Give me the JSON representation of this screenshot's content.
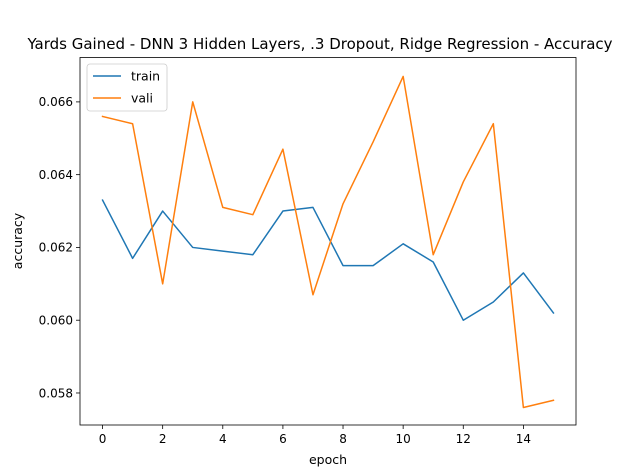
{
  "chart_data": {
    "type": "line",
    "title": "Yards Gained - DNN 3 Hidden Layers, .3 Dropout, Ridge Regression - Accuracy",
    "xlabel": "epoch",
    "ylabel": "accuracy",
    "xlim": [
      -0.75,
      15.75
    ],
    "ylim": [
      0.05712,
      0.06722
    ],
    "xticks": [
      0,
      2,
      4,
      6,
      8,
      10,
      12,
      14
    ],
    "xtick_labels": [
      "0",
      "2",
      "4",
      "6",
      "8",
      "10",
      "12",
      "14"
    ],
    "yticks": [
      0.058,
      0.06,
      0.062,
      0.064,
      0.066
    ],
    "ytick_labels": [
      "0.058",
      "0.060",
      "0.062",
      "0.064",
      "0.066"
    ],
    "x": [
      0,
      1,
      2,
      3,
      4,
      5,
      6,
      7,
      8,
      9,
      10,
      11,
      12,
      13,
      14,
      15
    ],
    "series": [
      {
        "name": "train",
        "color": "#1f77b4",
        "values": [
          0.0633,
          0.0617,
          0.063,
          0.062,
          0.0619,
          0.0618,
          0.063,
          0.0631,
          0.0615,
          0.0615,
          0.0621,
          0.0616,
          0.06,
          0.0605,
          0.0613,
          0.0602
        ]
      },
      {
        "name": "vali",
        "color": "#ff7f0e",
        "values": [
          0.0656,
          0.0654,
          0.061,
          0.066,
          0.0631,
          0.0629,
          0.0647,
          0.0607,
          0.0632,
          0.0649,
          0.0667,
          0.0618,
          0.0638,
          0.0654,
          0.0576,
          0.0578
        ]
      }
    ],
    "grid": false,
    "legend_position": "top-left"
  }
}
